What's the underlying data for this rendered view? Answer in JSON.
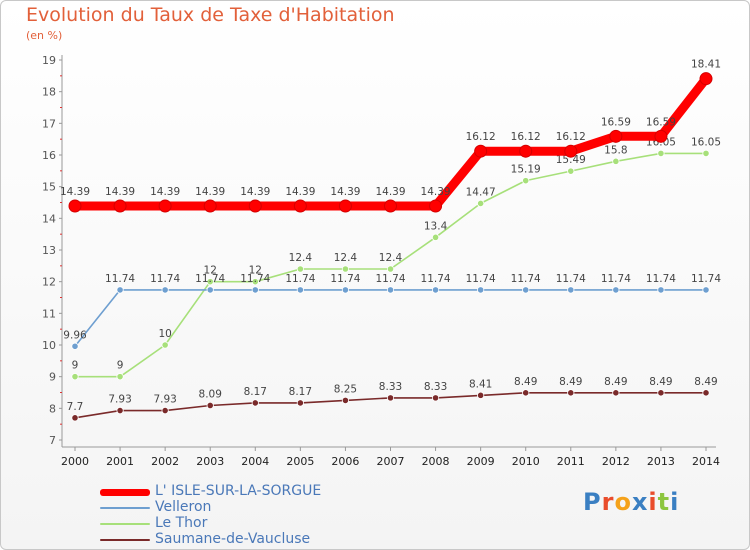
{
  "header": {
    "title": "Evolution du Taux de Taxe d'Habitation",
    "subtitle": "(en %)"
  },
  "logo": {
    "text": "Proxiti",
    "colors": [
      "#3a7fc2",
      "#e94c2b",
      "#f5a21a",
      "#3a7fc2",
      "#e94c2b",
      "#8dc63f",
      "#3a7fc2"
    ]
  },
  "chart_data": {
    "type": "line",
    "title": "Evolution du Taux de Taxe d'Habitation",
    "subtitle": "(en %)",
    "x": [
      2000,
      2001,
      2002,
      2003,
      2004,
      2005,
      2006,
      2007,
      2008,
      2009,
      2010,
      2011,
      2012,
      2013,
      2014
    ],
    "ylim": [
      7,
      19
    ],
    "yticks": [
      7,
      8,
      9,
      10,
      11,
      12,
      13,
      14,
      15,
      16,
      17,
      18,
      19
    ],
    "grid": false,
    "legend": "bottom-left",
    "series": [
      {
        "name": "L' ISLE-SUR-LA-SORGUE",
        "color": "#ff0000",
        "values": [
          14.39,
          14.39,
          14.39,
          14.39,
          14.39,
          14.39,
          14.39,
          14.39,
          14.39,
          16.12,
          16.12,
          16.12,
          16.59,
          16.59,
          18.41
        ]
      },
      {
        "name": "Velleron",
        "color": "#6e9fd0",
        "values": [
          9.96,
          11.74,
          11.74,
          11.74,
          11.74,
          11.74,
          11.74,
          11.74,
          11.74,
          11.74,
          11.74,
          11.74,
          11.74,
          11.74,
          11.74
        ]
      },
      {
        "name": "Le Thor",
        "color": "#a7e07a",
        "values": [
          9,
          9,
          10,
          12,
          12,
          12.4,
          12.4,
          12.4,
          13.4,
          14.47,
          15.19,
          15.49,
          15.8,
          16.05,
          16.05
        ]
      },
      {
        "name": "Saumane-de-Vaucluse",
        "color": "#7a2a2a",
        "values": [
          7.7,
          7.93,
          7.93,
          8.09,
          8.17,
          8.17,
          8.25,
          8.33,
          8.33,
          8.41,
          8.49,
          8.49,
          8.49,
          8.49,
          8.49
        ]
      }
    ]
  }
}
